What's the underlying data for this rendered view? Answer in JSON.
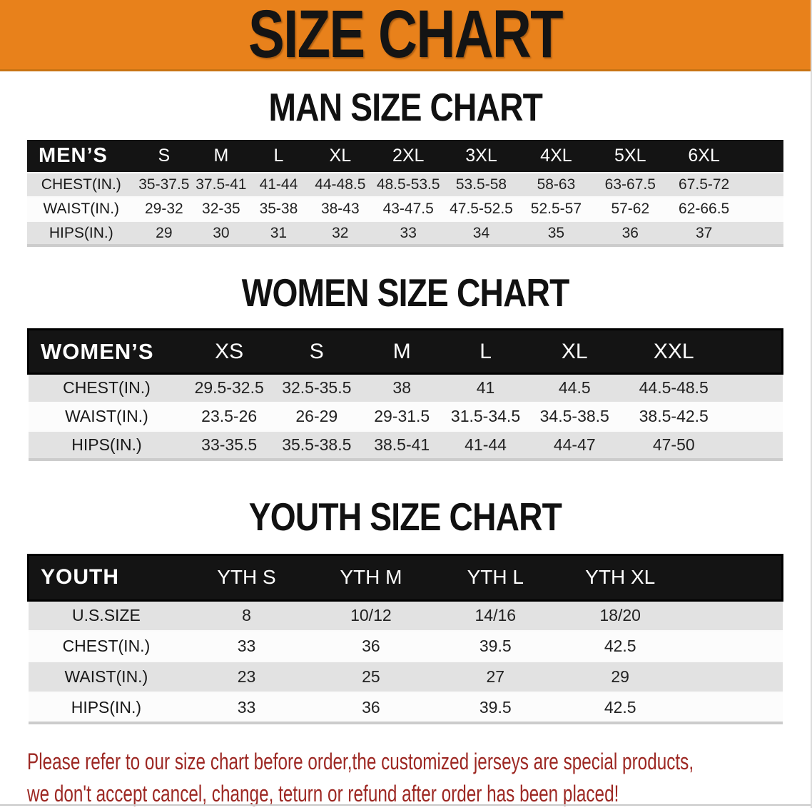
{
  "banner": {
    "title": "SIZE CHART"
  },
  "colors": {
    "banner_bg": "#E8811B",
    "header_bar": "#141414",
    "row_gray": "#E2E2E2",
    "row_white": "#FCFCFC",
    "disclaimer_text": "#9D2823"
  },
  "tables": {
    "men": {
      "section_title": "MAN SIZE CHART",
      "header_label": "MEN’S",
      "columns": [
        "S",
        "M",
        "L",
        "XL",
        "2XL",
        "3XL",
        "4XL",
        "5XL",
        "6XL"
      ],
      "rows": [
        {
          "label": "CHEST(IN.)",
          "values": [
            "35-37.5",
            "37.5-41",
            "41-44",
            "44-48.5",
            "48.5-53.5",
            "53.5-58",
            "58-63",
            "63-67.5",
            "67.5-72"
          ]
        },
        {
          "label": "WAIST(IN.)",
          "values": [
            "29-32",
            "32-35",
            "35-38",
            "38-43",
            "43-47.5",
            "47.5-52.5",
            "52.5-57",
            "57-62",
            "62-66.5"
          ]
        },
        {
          "label": "HIPS(IN.)",
          "values": [
            "29",
            "30",
            "31",
            "32",
            "33",
            "34",
            "35",
            "36",
            "37"
          ]
        }
      ]
    },
    "women": {
      "section_title": "WOMEN SIZE CHART",
      "header_label": "WOMEN’S",
      "columns": [
        "XS",
        "S",
        "M",
        "L",
        "XL",
        "XXL"
      ],
      "rows": [
        {
          "label": "CHEST(IN.)",
          "values": [
            "29.5-32.5",
            "32.5-35.5",
            "38",
            "41",
            "44.5",
            "44.5-48.5"
          ]
        },
        {
          "label": "WAIST(IN.)",
          "values": [
            "23.5-26",
            "26-29",
            "29-31.5",
            "31.5-34.5",
            "34.5-38.5",
            "38.5-42.5"
          ]
        },
        {
          "label": "HIPS(IN.)",
          "values": [
            "33-35.5",
            "35.5-38.5",
            "38.5-41",
            "41-44",
            "44-47",
            "47-50"
          ]
        }
      ]
    },
    "youth": {
      "section_title": "YOUTH SIZE CHART",
      "header_label": "YOUTH",
      "columns": [
        "YTH S",
        "YTH M",
        "YTH L",
        "YTH XL"
      ],
      "rows": [
        {
          "label": "U.S.SIZE",
          "values": [
            "8",
            "10/12",
            "14/16",
            "18/20"
          ]
        },
        {
          "label": "CHEST(IN.)",
          "values": [
            "33",
            "36",
            "39.5",
            "42.5"
          ]
        },
        {
          "label": "WAIST(IN.)",
          "values": [
            "23",
            "25",
            "27",
            "29"
          ]
        },
        {
          "label": "HIPS(IN.)",
          "values": [
            "33",
            "36",
            "39.5",
            "42.5"
          ]
        }
      ]
    }
  },
  "disclaimer": {
    "line1": "Please refer to our size chart before order,the customized jerseys are special products,",
    "line2": "we don't accept cancel, change, teturn or refund after order has been placed!"
  }
}
